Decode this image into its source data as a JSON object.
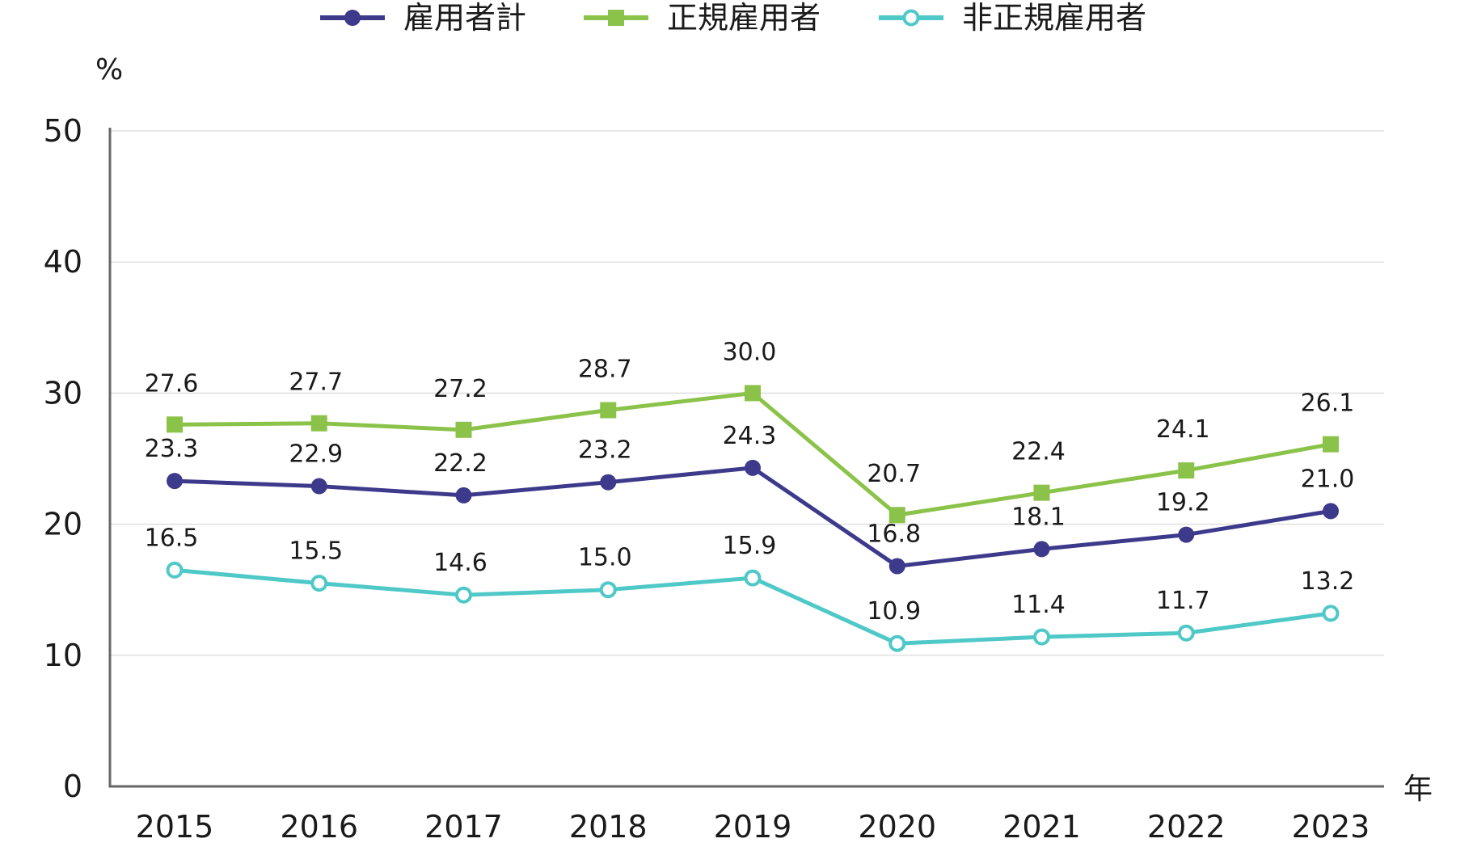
{
  "chart_data": {
    "type": "line",
    "categories": [
      "2015",
      "2016",
      "2017",
      "2018",
      "2019",
      "2020",
      "2021",
      "2022",
      "2023"
    ],
    "series": [
      {
        "name": "雇用者計",
        "color": "#3d3a8c",
        "marker": "filled-circle",
        "values": [
          23.3,
          22.9,
          22.2,
          23.2,
          24.3,
          16.8,
          18.1,
          19.2,
          21.0
        ]
      },
      {
        "name": "正規雇用者",
        "color": "#8bc34a",
        "marker": "filled-square",
        "values": [
          27.6,
          27.7,
          27.2,
          28.7,
          30.0,
          20.7,
          22.4,
          24.1,
          26.1
        ]
      },
      {
        "name": "非正規雇用者",
        "color": "#4fc8c8",
        "marker": "hollow-circle",
        "values": [
          16.5,
          15.5,
          14.6,
          15.0,
          15.9,
          10.9,
          11.4,
          11.7,
          13.2
        ]
      }
    ],
    "ylim": [
      0,
      50
    ],
    "yticks": [
      "0",
      "10",
      "20",
      "30",
      "40",
      "50"
    ],
    "yunit": "%",
    "xunit": "年",
    "grid": true,
    "legend_position": "top"
  },
  "colors": {
    "axis": "#666666",
    "grid": "#e0e0e0"
  }
}
